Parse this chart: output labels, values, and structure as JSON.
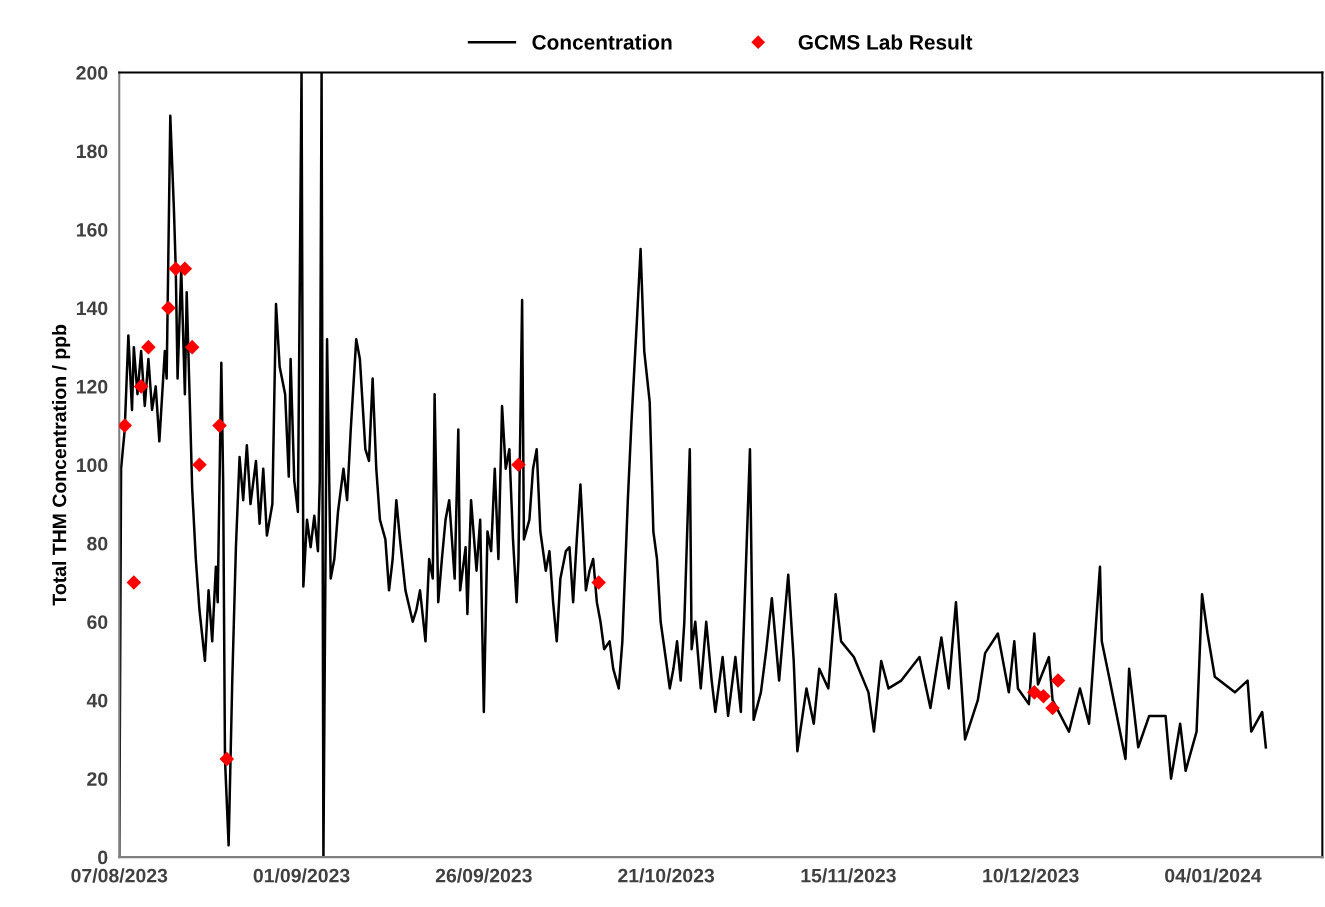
{
  "chart_data": {
    "type": "line",
    "ylabel": "Total THM Concentration / ppb",
    "xlim": [
      "2023-08-07",
      "2024-01-19"
    ],
    "xticks": [
      {
        "value": "2023-08-07",
        "label": "07/08/2023"
      },
      {
        "value": "2023-09-01",
        "label": "01/09/2023"
      },
      {
        "value": "2023-09-26",
        "label": "26/09/2023"
      },
      {
        "value": "2023-10-21",
        "label": "21/10/2023"
      },
      {
        "value": "2023-11-15",
        "label": "15/11/2023"
      },
      {
        "value": "2023-12-10",
        "label": "10/12/2023"
      },
      {
        "value": "2024-01-04",
        "label": "04/01/2024"
      }
    ],
    "ylim": [
      0,
      200
    ],
    "yticks": [
      0,
      20,
      40,
      60,
      80,
      100,
      120,
      140,
      160,
      180,
      200
    ],
    "grid": false,
    "legend": "top",
    "series": [
      {
        "name": "Concentration",
        "color": "#000000",
        "marker": "none",
        "line_style": "solid",
        "x": [
          "2023-08-07T00:00",
          "2023-08-07T06:00",
          "2023-08-07T18:00",
          "2023-08-08T06:00",
          "2023-08-08T18:00",
          "2023-08-09T00:00",
          "2023-08-09T12:00",
          "2023-08-10T00:00",
          "2023-08-10T12:00",
          "2023-08-11T00:00",
          "2023-08-11T12:00",
          "2023-08-12T00:00",
          "2023-08-12T12:00",
          "2023-08-13T06:00",
          "2023-08-13T12:00",
          "2023-08-14T00:00",
          "2023-08-14T12:00",
          "2023-08-14T18:00",
          "2023-08-15T00:00",
          "2023-08-15T12:00",
          "2023-08-16T00:00",
          "2023-08-16T06:00",
          "2023-08-16T18:00",
          "2023-08-17T00:00",
          "2023-08-17T12:00",
          "2023-08-18T00:00",
          "2023-08-18T18:00",
          "2023-08-19T06:00",
          "2023-08-19T18:00",
          "2023-08-20T06:00",
          "2023-08-20T12:00",
          "2023-08-21T00:00",
          "2023-08-21T06:00",
          "2023-08-21T12:00",
          "2023-08-22T00:00",
          "2023-08-22T12:00",
          "2023-08-23T00:00",
          "2023-08-23T12:00",
          "2023-08-24T00:00",
          "2023-08-24T12:00",
          "2023-08-25T00:00",
          "2023-08-25T18:00",
          "2023-08-26T06:00",
          "2023-08-26T18:00",
          "2023-08-27T06:00",
          "2023-08-28T00:00",
          "2023-08-28T12:00",
          "2023-08-29T00:00",
          "2023-08-29T18:00",
          "2023-08-30T06:00",
          "2023-08-30T12:00",
          "2023-08-31T00:00",
          "2023-08-31T12:00",
          "2023-09-01T00:00",
          "2023-09-01T06:00",
          "2023-09-01T18:00",
          "2023-09-02T06:00",
          "2023-09-02T18:00",
          "2023-09-03T06:00",
          "2023-09-03T12:00",
          "2023-09-03T18:00",
          "2023-09-04T00:00",
          "2023-09-04T12:00",
          "2023-09-05T00:00",
          "2023-09-05T12:00",
          "2023-09-06T00:00",
          "2023-09-06T18:00",
          "2023-09-07T06:00",
          "2023-09-07T18:00",
          "2023-09-08T12:00",
          "2023-09-09T00:00",
          "2023-09-09T18:00",
          "2023-09-10T06:00",
          "2023-09-10T18:00",
          "2023-09-11T06:00",
          "2023-09-11T18:00",
          "2023-09-12T12:00",
          "2023-09-13T00:00",
          "2023-09-13T12:00",
          "2023-09-14T00:00",
          "2023-09-14T12:00",
          "2023-09-15T06:00",
          "2023-09-15T18:00",
          "2023-09-16T06:00",
          "2023-09-16T18:00",
          "2023-09-17T06:00",
          "2023-09-18T00:00",
          "2023-09-18T12:00",
          "2023-09-19T00:00",
          "2023-09-19T06:00",
          "2023-09-19T18:00",
          "2023-09-20T06:00",
          "2023-09-20T18:00",
          "2023-09-21T06:00",
          "2023-09-22T00:00",
          "2023-09-22T12:00",
          "2023-09-22T18:00",
          "2023-09-23T12:00",
          "2023-09-23T18:00",
          "2023-09-24T06:00",
          "2023-09-25T00:00",
          "2023-09-25T12:00",
          "2023-09-26T00:00",
          "2023-09-26T12:00",
          "2023-09-27T00:00",
          "2023-09-27T12:00",
          "2023-09-28T00:00",
          "2023-09-28T12:00",
          "2023-09-29T00:00",
          "2023-09-29T12:00",
          "2023-09-30T00:00",
          "2023-09-30T12:00",
          "2023-09-30T18:00",
          "2023-10-01T06:00",
          "2023-10-01T12:00",
          "2023-10-02T06:00",
          "2023-10-02T18:00",
          "2023-10-03T06:00",
          "2023-10-03T18:00",
          "2023-10-04T12:00",
          "2023-10-05T00:00",
          "2023-10-05T12:00",
          "2023-10-06T00:00",
          "2023-10-06T12:00",
          "2023-10-07T06:00",
          "2023-10-07T18:00",
          "2023-10-08T06:00",
          "2023-10-08T18:00",
          "2023-10-09T06:00",
          "2023-10-10T00:00",
          "2023-10-10T12:00",
          "2023-10-11T00:00",
          "2023-10-11T12:00",
          "2023-10-12T00:00",
          "2023-10-12T12:00",
          "2023-10-13T06:00",
          "2023-10-13T18:00",
          "2023-10-14T12:00",
          "2023-10-15T00:00",
          "2023-10-15T18:00",
          "2023-10-16T06:00",
          "2023-10-17T00:00",
          "2023-10-17T12:00",
          "2023-10-18T00:00",
          "2023-10-18T18:00",
          "2023-10-19T06:00",
          "2023-10-19T18:00",
          "2023-10-20T06:00",
          "2023-10-21T00:00",
          "2023-10-21T12:00",
          "2023-10-22T00:00",
          "2023-10-22T12:00",
          "2023-10-23T00:00",
          "2023-10-23T12:00",
          "2023-10-24T06:00",
          "2023-10-24T12:00",
          "2023-10-25T00:00",
          "2023-10-25T18:00",
          "2023-10-26T12:00",
          "2023-10-27T06:00",
          "2023-10-27T18:00",
          "2023-10-28T18:00",
          "2023-10-29T12:00",
          "2023-10-30T12:00",
          "2023-10-31T06:00",
          "2023-11-01T12:00",
          "2023-11-02T00:00",
          "2023-11-03T00:00",
          "2023-11-03T18:00",
          "2023-11-04T12:00",
          "2023-11-05T12:00",
          "2023-11-06T18:00",
          "2023-11-07T12:00",
          "2023-11-08T00:00",
          "2023-11-09T06:00",
          "2023-11-10T06:00",
          "2023-11-11T00:00",
          "2023-11-12T06:00",
          "2023-11-13T06:00",
          "2023-11-14T00:00",
          "2023-11-15T18:00",
          "2023-11-17T18:00",
          "2023-11-18T12:00",
          "2023-11-19T12:00",
          "2023-11-20T12:00",
          "2023-11-22T06:00",
          "2023-11-24T18:00",
          "2023-11-26T06:00",
          "2023-11-27T18:00",
          "2023-11-28T18:00",
          "2023-11-29T18:00",
          "2023-12-01T00:00",
          "2023-12-02T18:00",
          "2023-12-03T18:00",
          "2023-12-05T12:00",
          "2023-12-07T00:00",
          "2023-12-07T18:00",
          "2023-12-08T06:00",
          "2023-12-09T18:00",
          "2023-12-10T12:00",
          "2023-12-11T00:00",
          "2023-12-12T12:00",
          "2023-12-13T00:00",
          "2023-12-15T06:00",
          "2023-12-16T18:00",
          "2023-12-18T00:00",
          "2023-12-19T12:00",
          "2023-12-19T18:00",
          "2023-12-20T18:00",
          "2023-12-23T00:00",
          "2023-12-23T12:00",
          "2023-12-24T18:00",
          "2023-12-26T06:00",
          "2023-12-28T12:00",
          "2023-12-29T06:00",
          "2023-12-30T12:00",
          "2023-12-31T06:00",
          "2024-01-01T18:00",
          "2024-01-02T12:00",
          "2024-01-03T06:00",
          "2024-01-04T06:00",
          "2024-01-07T00:00",
          "2024-01-08T18:00",
          "2024-01-09T06:00",
          "2024-01-10T18:00",
          "2024-01-11T06:00"
        ],
        "values": [
          0,
          99,
          109,
          133,
          114,
          130,
          118,
          129,
          115,
          127,
          114,
          120,
          106,
          129,
          122,
          189,
          165,
          150,
          122,
          150,
          118,
          144,
          111,
          94,
          76,
          63,
          50,
          68,
          55,
          74,
          65,
          126,
          96,
          25,
          3,
          45,
          79,
          102,
          91,
          105,
          90,
          101,
          85,
          99,
          82,
          90,
          141,
          125,
          118,
          97,
          127,
          96,
          88,
          200,
          69,
          86,
          79,
          87,
          78,
          96,
          200,
          0,
          132,
          71,
          76,
          88,
          99,
          91,
          109,
          132,
          127,
          104,
          101,
          122,
          99,
          86,
          81,
          68,
          76,
          91,
          81,
          68,
          64,
          60,
          63,
          68,
          55,
          76,
          71,
          118,
          65,
          76,
          86,
          91,
          71,
          109,
          68,
          79,
          62,
          91,
          73,
          86,
          37,
          83,
          78,
          99,
          76,
          115,
          99,
          104,
          81,
          65,
          76,
          142,
          81,
          86,
          99,
          104,
          83,
          73,
          78,
          65,
          55,
          71,
          78,
          79,
          65,
          81,
          95,
          68,
          73,
          76,
          65,
          60,
          53,
          55,
          48,
          43,
          55,
          91,
          111,
          137,
          155,
          129,
          116,
          83,
          76,
          60,
          50,
          43,
          48,
          55,
          45,
          60,
          104,
          53,
          60,
          43,
          60,
          45,
          37,
          51,
          36,
          51,
          37,
          104,
          35,
          42,
          53,
          66,
          45,
          72,
          50,
          27,
          43,
          34,
          48,
          43,
          67,
          55,
          51,
          42,
          32,
          50,
          43,
          45,
          51,
          38,
          56,
          43,
          65,
          30,
          40,
          52,
          57,
          42,
          55,
          43,
          39,
          57,
          44,
          51,
          40,
          32,
          43,
          34,
          74,
          55,
          46,
          25,
          48,
          28,
          36,
          36,
          20,
          34,
          22,
          32,
          67,
          57,
          46,
          42,
          45,
          32,
          37,
          28
        ]
      },
      {
        "name": "GCMS Lab Result",
        "type": "scatter",
        "color": "#ff0000",
        "marker": "diamond",
        "x": [
          "2023-08-07T18:00",
          "2023-08-09T00:00",
          "2023-08-10T00:00",
          "2023-08-11T00:00",
          "2023-08-13T18:00",
          "2023-08-14T18:00",
          "2023-08-16T00:00",
          "2023-08-17T00:00",
          "2023-08-18T00:00",
          "2023-08-20T18:00",
          "2023-08-21T18:00",
          "2023-09-30T18:00",
          "2023-10-11T18:00",
          "2023-12-10T12:00",
          "2023-12-11T18:00",
          "2023-12-13T00:00",
          "2023-12-13T18:00"
        ],
        "values": [
          110,
          70,
          120,
          130,
          140,
          150,
          150,
          130,
          100,
          110,
          25,
          100,
          70,
          42,
          41,
          38,
          45
        ]
      }
    ]
  }
}
